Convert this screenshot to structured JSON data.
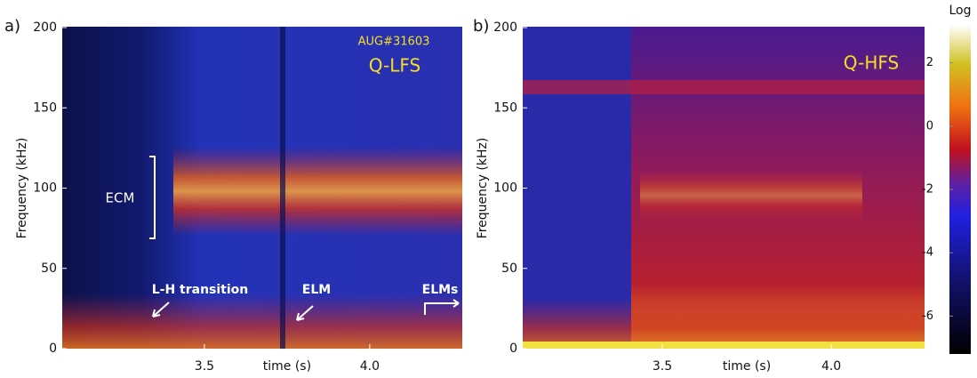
{
  "chart_data": [
    {
      "type": "spectrogram",
      "panel_label": "a)",
      "xlabel": "time (s)",
      "ylabel": "Frequency (kHz)",
      "xlim": [
        3.07,
        4.28
      ],
      "xticks": [
        3.5,
        {
          "value": 4,
          "label": "4.0"
        }
      ],
      "ylim": [
        0,
        200
      ],
      "yticks": [
        0,
        50,
        100,
        150,
        200
      ],
      "annotations": {
        "shot": "AUG#31603",
        "probe": "Q-LFS",
        "ecm": "ECM",
        "lh": "L-H transition",
        "elm": "ELM",
        "elms": "ELMs"
      }
    },
    {
      "type": "spectrogram",
      "panel_label": "b)",
      "xlabel": "time (s)",
      "ylabel": "Frequency (kHz)",
      "xlim": [
        3.087,
        4.276
      ],
      "xticks": [
        3.5,
        {
          "value": 4,
          "label": "4.0"
        }
      ],
      "ylim": [
        0,
        200
      ],
      "yticks": [
        0,
        50,
        100,
        150,
        200
      ],
      "annotations": {
        "probe": "Q-HFS"
      }
    },
    {
      "type": "colorbar",
      "title": "Log",
      "ylim": [
        -7.2,
        3.2
      ],
      "yticks": [
        2,
        0,
        -2,
        -4,
        -6
      ]
    }
  ]
}
